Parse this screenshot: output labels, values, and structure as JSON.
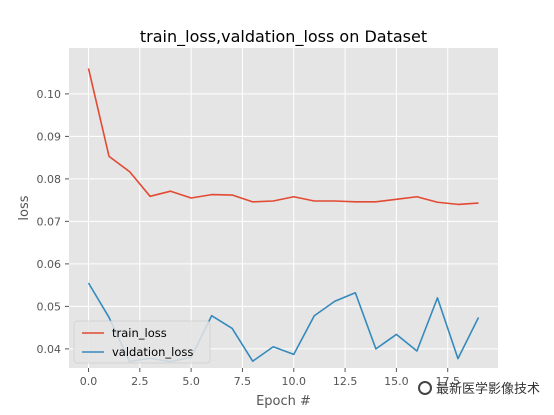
{
  "chart_data": {
    "type": "line",
    "title": "train_loss,valdation_loss on Dataset",
    "xlabel": "Epoch #",
    "ylabel": "loss",
    "xlim": [
      -0.95,
      19.95
    ],
    "ylim": [
      0.0355,
      0.1108
    ],
    "x_ticks": [
      0.0,
      2.5,
      5.0,
      7.5,
      10.0,
      12.5,
      15.0,
      17.5
    ],
    "y_ticks": [
      0.04,
      0.05,
      0.06,
      0.07,
      0.08,
      0.09,
      0.1
    ],
    "x_tick_labels": [
      "0.0",
      "2.5",
      "5.0",
      "7.5",
      "10.0",
      "12.5",
      "15.0",
      "17.5"
    ],
    "y_tick_labels": [
      "0.04",
      "0.05",
      "0.06",
      "0.07",
      "0.08",
      "0.09",
      "0.10"
    ],
    "grid": true,
    "legend_position": "lower-left",
    "x": [
      0,
      1,
      2,
      3,
      4,
      5,
      6,
      7,
      8,
      9,
      10,
      11,
      12,
      13,
      14,
      15,
      16,
      17,
      18,
      19
    ],
    "series": [
      {
        "name": "train_loss",
        "color": "#E24A33",
        "values": [
          0.106,
          0.0853,
          0.0817,
          0.0759,
          0.0771,
          0.0755,
          0.0763,
          0.0762,
          0.0746,
          0.0748,
          0.0758,
          0.0748,
          0.0748,
          0.0746,
          0.0746,
          0.0752,
          0.0758,
          0.0745,
          0.074,
          0.0743
        ]
      },
      {
        "name": "valdation_loss",
        "color": "#348ABD",
        "values": [
          0.0555,
          0.0474,
          0.037,
          0.0378,
          0.037,
          0.038,
          0.0478,
          0.0448,
          0.0371,
          0.0405,
          0.0387,
          0.0478,
          0.0512,
          0.0532,
          0.04,
          0.0434,
          0.0395,
          0.052,
          0.0377,
          0.0474
        ]
      }
    ]
  },
  "watermark": {
    "text": "最新医学影像技术"
  }
}
